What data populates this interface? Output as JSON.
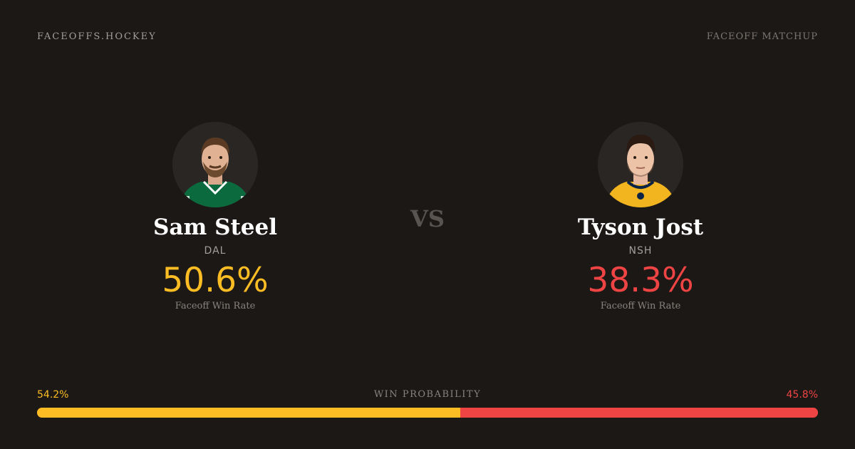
{
  "header": {
    "brand": "FACEOFFS.HOCKEY",
    "tag": "FACEOFF MATCHUP"
  },
  "players": [
    {
      "name": "Sam Steel",
      "team": "DAL",
      "win_rate": "50.6%",
      "win_rate_label": "Faceoff Win Rate",
      "jersey_color": "#0c6b3e",
      "stat_color": "#fbbd23"
    },
    {
      "name": "Tyson Jost",
      "team": "NSH",
      "win_rate": "38.3%",
      "win_rate_label": "Faceoff Win Rate",
      "jersey_color": "#f2b51f",
      "stat_color": "#ef4444"
    }
  ],
  "vs_label": "VS",
  "probability": {
    "label": "WIN PROBABILITY",
    "left": "54.2%",
    "right": "45.8%",
    "left_fraction": 0.542,
    "right_fraction": 0.458,
    "left_color": "#fbbd23",
    "right_color": "#ef4444"
  }
}
